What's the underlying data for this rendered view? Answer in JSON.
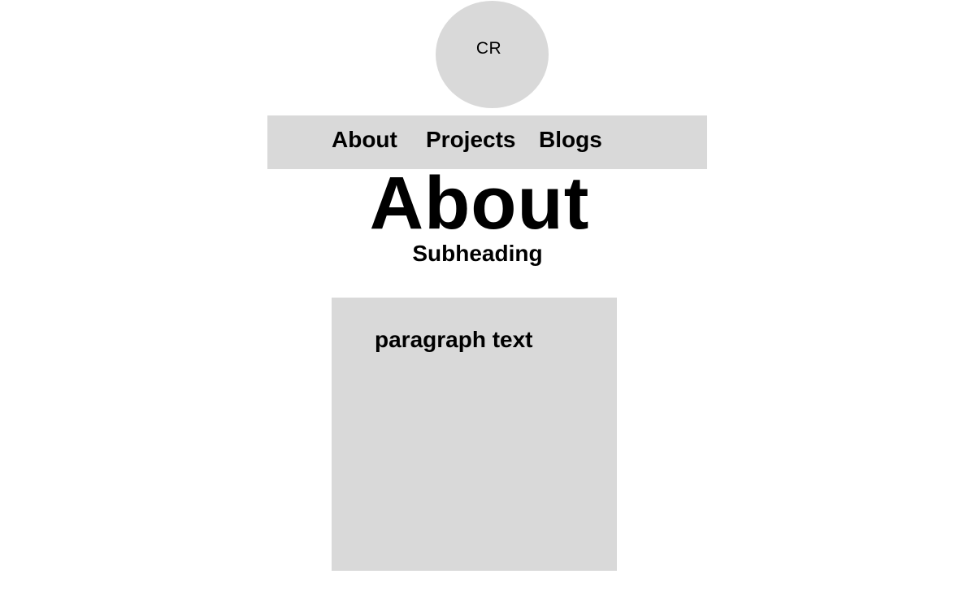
{
  "avatar": {
    "initials": "CR"
  },
  "nav": {
    "items": [
      {
        "label": "About"
      },
      {
        "label": "Projects"
      },
      {
        "label": "Blogs"
      }
    ]
  },
  "main": {
    "title": "About",
    "subheading": "Subheading",
    "paragraph": "paragraph text"
  },
  "colors": {
    "background": "#ffffff",
    "placeholder_gray": "#d9d9d9",
    "text": "#000000"
  }
}
